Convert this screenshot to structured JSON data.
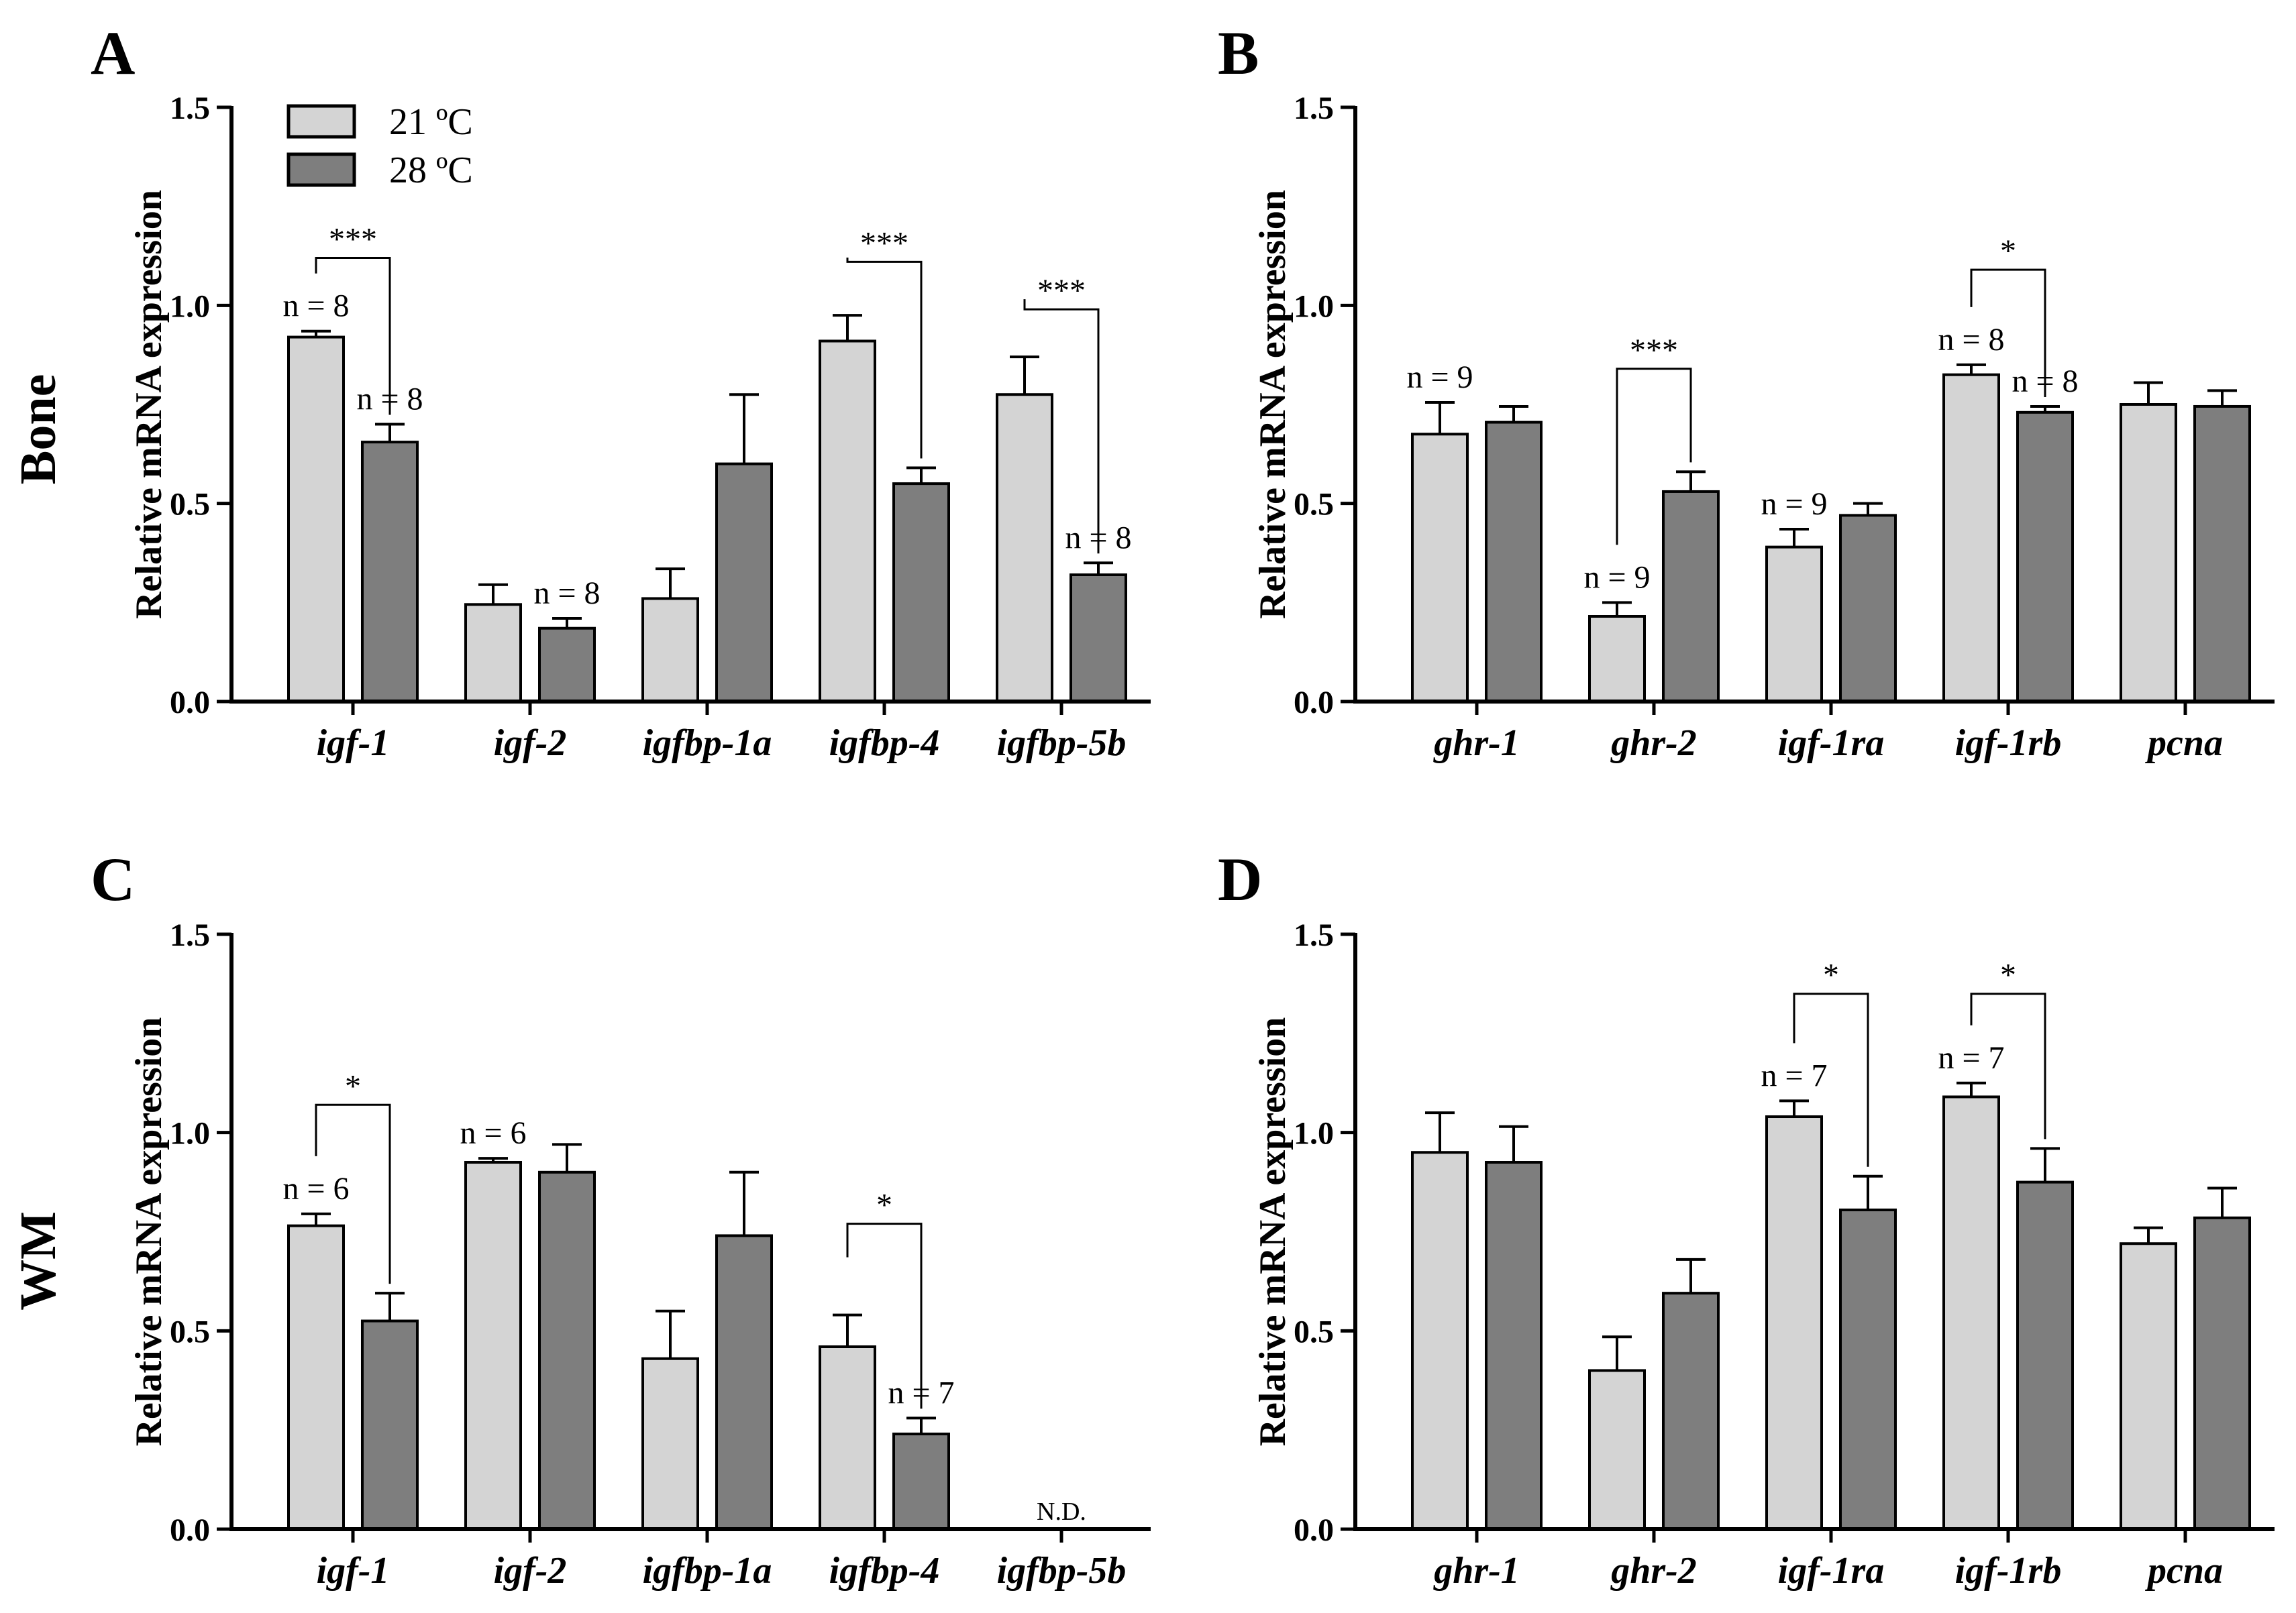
{
  "figure": {
    "row_labels": [
      "Bone",
      "WM"
    ],
    "legend": [
      {
        "label": "21 ºC",
        "color": "#d4d4d4"
      },
      {
        "label": "28 ºC",
        "color": "#7e7e7e"
      }
    ],
    "colors": {
      "light_bar": "#d4d4d4",
      "dark_bar": "#7e7e7e",
      "ink": "#000000"
    }
  },
  "chart_data": [
    {
      "panel": "A",
      "type": "bar",
      "ylabel": "Relative mRNA expression",
      "ylim": [
        0,
        1.5
      ],
      "yticks": [
        "0.0",
        "0.5",
        "1.0",
        "1.5"
      ],
      "categories": [
        "igf-1",
        "igf-2",
        "igfbp-1a",
        "igfbp-4",
        "igfbp-5b"
      ],
      "series": [
        {
          "name": "21 ºC",
          "values": [
            0.92,
            0.245,
            0.26,
            0.91,
            0.775
          ],
          "errors": [
            0.015,
            0.05,
            0.075,
            0.065,
            0.095
          ]
        },
        {
          "name": "28 ºC",
          "values": [
            0.655,
            0.185,
            0.6,
            0.55,
            0.32
          ],
          "errors": [
            0.045,
            0.025,
            0.175,
            0.04,
            0.03
          ]
        }
      ],
      "n_labels": [
        {
          "text": "n = 8",
          "cat": 0,
          "series": 0
        },
        {
          "text": "n = 8",
          "cat": 0,
          "series": 1
        },
        {
          "text": "n = 8",
          "cat": 1,
          "series": 1
        },
        {
          "text": "n = 8",
          "cat": 4,
          "series": 1
        }
      ],
      "significance": [
        {
          "cat": 0,
          "label": "***",
          "y": 1.12
        },
        {
          "cat": 3,
          "label": "***",
          "y": 1.11
        },
        {
          "cat": 4,
          "label": "***",
          "y": 0.99
        }
      ],
      "nd": []
    },
    {
      "panel": "B",
      "type": "bar",
      "ylabel": "Relative mRNA expression",
      "ylim": [
        0,
        1.5
      ],
      "yticks": [
        "0.0",
        "0.5",
        "1.0",
        "1.5"
      ],
      "categories": [
        "ghr-1",
        "ghr-2",
        "igf-1ra",
        "igf-1rb",
        "pcna"
      ],
      "series": [
        {
          "name": "21 ºC",
          "values": [
            0.675,
            0.215,
            0.39,
            0.825,
            0.75
          ],
          "errors": [
            0.08,
            0.035,
            0.045,
            0.025,
            0.055
          ]
        },
        {
          "name": "28 ºC",
          "values": [
            0.705,
            0.53,
            0.47,
            0.73,
            0.745
          ],
          "errors": [
            0.04,
            0.05,
            0.03,
            0.015,
            0.04
          ]
        }
      ],
      "n_labels": [
        {
          "text": "n = 9",
          "cat": 0,
          "series": 0
        },
        {
          "text": "n = 9",
          "cat": 1,
          "series": 0
        },
        {
          "text": "n = 9",
          "cat": 2,
          "series": 0
        },
        {
          "text": "n = 8",
          "cat": 3,
          "series": 0
        },
        {
          "text": "n = 8",
          "cat": 3,
          "series": 1
        }
      ],
      "significance": [
        {
          "cat": 1,
          "label": "***",
          "y": 0.84
        },
        {
          "cat": 3,
          "label": "*",
          "y": 1.09
        }
      ],
      "nd": []
    },
    {
      "panel": "C",
      "type": "bar",
      "ylabel": "Relative mRNA expression",
      "ylim": [
        0,
        1.5
      ],
      "yticks": [
        "0.0",
        "0.5",
        "1.0",
        "1.5"
      ],
      "categories": [
        "igf-1",
        "igf-2",
        "igfbp-1a",
        "igfbp-4",
        "igfbp-5b"
      ],
      "series": [
        {
          "name": "21 ºC",
          "values": [
            0.765,
            0.925,
            0.43,
            0.46,
            0
          ],
          "errors": [
            0.03,
            0.01,
            0.12,
            0.08,
            0
          ]
        },
        {
          "name": "28 ºC",
          "values": [
            0.525,
            0.9,
            0.74,
            0.24,
            0
          ],
          "errors": [
            0.07,
            0.07,
            0.16,
            0.04,
            0
          ]
        }
      ],
      "n_labels": [
        {
          "text": "n = 6",
          "cat": 0,
          "series": 0
        },
        {
          "text": "n = 6",
          "cat": 1,
          "series": 0
        },
        {
          "text": "n = 7",
          "cat": 3,
          "series": 1
        }
      ],
      "significance": [
        {
          "cat": 0,
          "label": "*",
          "y": 1.07
        },
        {
          "cat": 3,
          "label": "*",
          "y": 0.77
        }
      ],
      "nd": [
        {
          "cat": 4,
          "label": "N.D."
        }
      ]
    },
    {
      "panel": "D",
      "type": "bar",
      "ylabel": "Relative mRNA expression",
      "ylim": [
        0,
        1.5
      ],
      "yticks": [
        "0.0",
        "0.5",
        "1.0",
        "1.5"
      ],
      "categories": [
        "ghr-1",
        "ghr-2",
        "igf-1ra",
        "igf-1rb",
        "pcna"
      ],
      "series": [
        {
          "name": "21 ºC",
          "values": [
            0.95,
            0.4,
            1.04,
            1.09,
            0.72
          ],
          "errors": [
            0.1,
            0.085,
            0.04,
            0.035,
            0.04
          ]
        },
        {
          "name": "28 ºC",
          "values": [
            0.925,
            0.595,
            0.805,
            0.875,
            0.785
          ],
          "errors": [
            0.09,
            0.085,
            0.085,
            0.085,
            0.075
          ]
        }
      ],
      "n_labels": [
        {
          "text": "n = 7",
          "cat": 2,
          "series": 0
        },
        {
          "text": "n = 7",
          "cat": 3,
          "series": 0
        }
      ],
      "significance": [
        {
          "cat": 2,
          "label": "*",
          "y": 1.35
        },
        {
          "cat": 3,
          "label": "*",
          "y": 1.35
        }
      ],
      "nd": []
    }
  ]
}
